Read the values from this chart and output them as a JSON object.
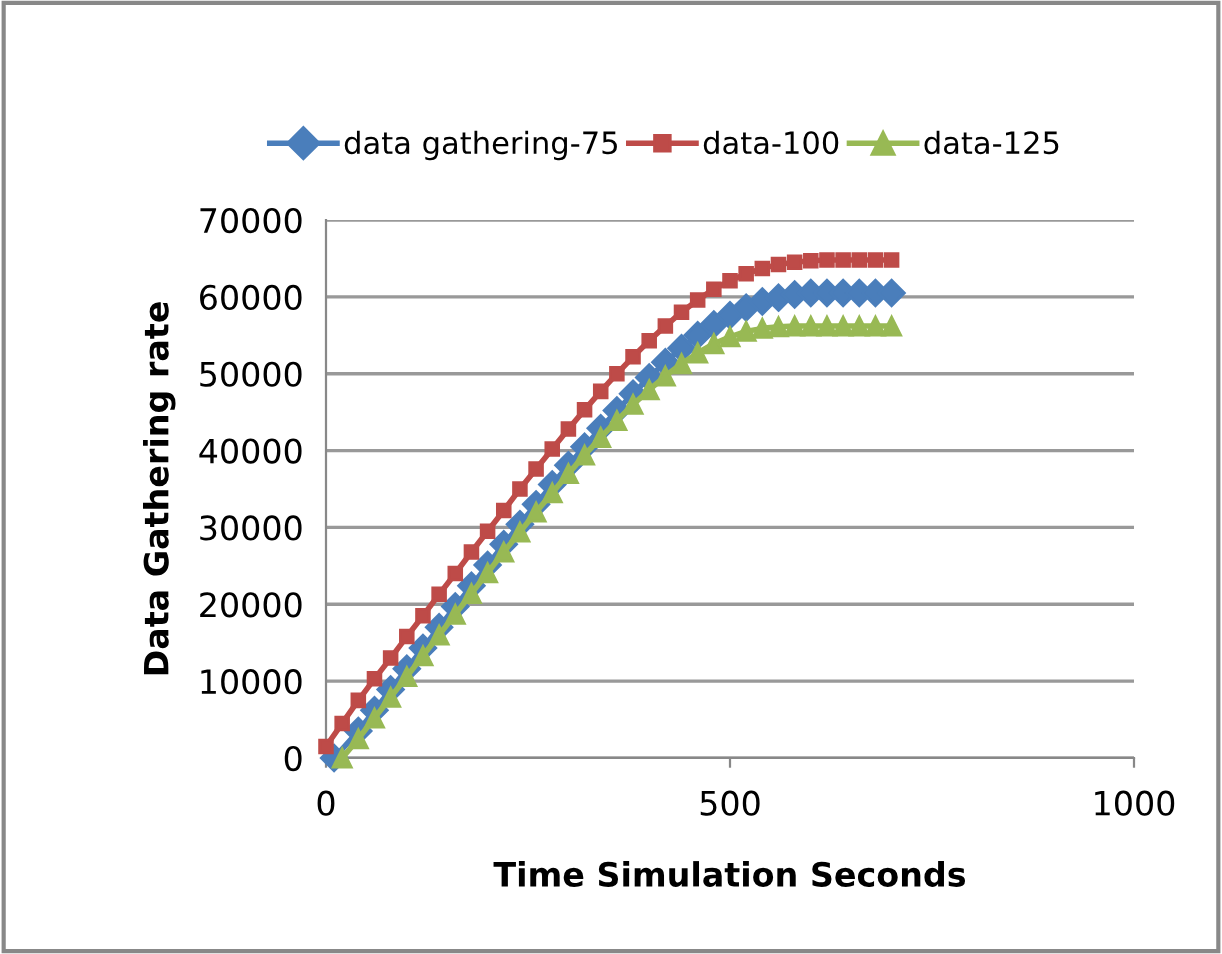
{
  "chart_data": {
    "type": "line",
    "xlabel": "Time Simulation Seconds",
    "ylabel": "Data Gathering rate",
    "xlim": [
      0,
      1000
    ],
    "xticks": [
      0,
      500,
      1000
    ],
    "ylim": [
      0,
      70000
    ],
    "yticks": [
      0,
      10000,
      20000,
      30000,
      40000,
      50000,
      60000,
      70000
    ],
    "grid": "y",
    "legend": "top",
    "series": [
      {
        "name": "data gathering-75",
        "color": "#4a7ebb",
        "marker": "diamond",
        "x": [
          10,
          40,
          60,
          80,
          100,
          120,
          140,
          160,
          180,
          200,
          220,
          240,
          260,
          280,
          300,
          320,
          340,
          360,
          380,
          400,
          420,
          440,
          460,
          480,
          500,
          520,
          540,
          560,
          580,
          600,
          620,
          640,
          660,
          680,
          700
        ],
        "values": [
          0,
          3500,
          6200,
          8900,
          11600,
          14300,
          17000,
          19700,
          22400,
          25100,
          27800,
          30400,
          33000,
          35600,
          38100,
          40500,
          42900,
          45200,
          47400,
          49500,
          51500,
          53300,
          55000,
          56400,
          57600,
          58600,
          59400,
          59900,
          60300,
          60500,
          60500,
          60500,
          60500,
          60500,
          60500
        ]
      },
      {
        "name": "data-100",
        "color": "#be4b48",
        "marker": "square",
        "x": [
          0,
          20,
          40,
          60,
          80,
          100,
          120,
          140,
          160,
          180,
          200,
          220,
          240,
          260,
          280,
          300,
          320,
          340,
          360,
          380,
          400,
          420,
          440,
          460,
          480,
          500,
          520,
          540,
          560,
          580,
          600,
          620,
          640,
          660,
          680,
          700
        ],
        "values": [
          1500,
          4500,
          7500,
          10300,
          13000,
          15800,
          18500,
          21300,
          24000,
          26800,
          29500,
          32200,
          35000,
          37600,
          40200,
          42800,
          45300,
          47700,
          50000,
          52200,
          54300,
          56200,
          58000,
          59600,
          61000,
          62100,
          63000,
          63700,
          64200,
          64500,
          64700,
          64800,
          64800,
          64800,
          64800,
          64800
        ]
      },
      {
        "name": "data-125",
        "color": "#98b954",
        "marker": "triangle",
        "x": [
          20,
          40,
          60,
          80,
          100,
          120,
          140,
          160,
          180,
          200,
          220,
          240,
          260,
          280,
          300,
          320,
          340,
          360,
          380,
          400,
          420,
          440,
          460,
          480,
          500,
          520,
          540,
          560,
          580,
          600,
          620,
          640,
          660,
          680,
          700
        ],
        "values": [
          0,
          2500,
          5200,
          7900,
          10600,
          13300,
          16000,
          18700,
          21400,
          24100,
          26800,
          29400,
          32000,
          34500,
          37000,
          39400,
          41700,
          43900,
          46000,
          47900,
          49700,
          51300,
          52700,
          53900,
          54800,
          55500,
          55900,
          56100,
          56200,
          56200,
          56200,
          56200,
          56200,
          56200,
          56200
        ]
      }
    ]
  }
}
